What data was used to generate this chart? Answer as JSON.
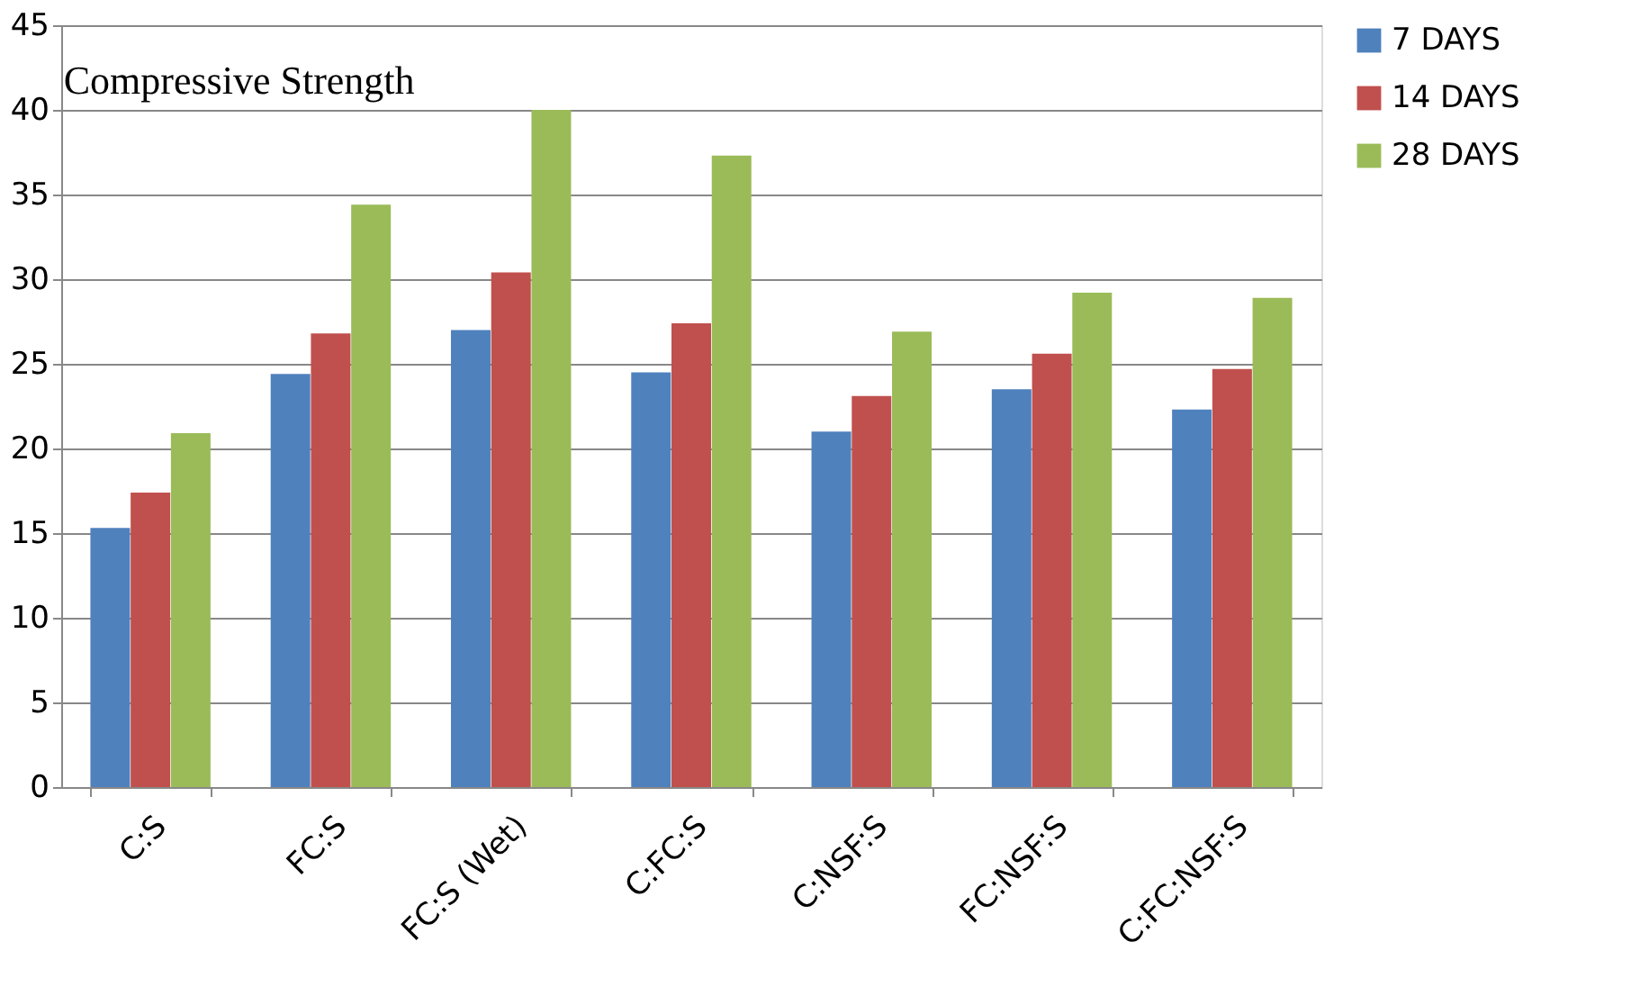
{
  "chart_data": {
    "type": "bar",
    "title": "Compressive Strength",
    "categories": [
      "C:S",
      "FC:S",
      "FC:S (Wet)",
      "C:FC:S",
      "C:NSF:S",
      "FC:NSF:S",
      "C:FC:NSF:S"
    ],
    "series": [
      {
        "name": "7 DAYS",
        "color": "#4f81bd",
        "values": [
          15.3,
          24.4,
          27.0,
          24.5,
          21.0,
          23.5,
          22.3
        ]
      },
      {
        "name": "14 DAYS",
        "color": "#c0504d",
        "values": [
          17.4,
          26.8,
          30.4,
          27.4,
          23.1,
          25.6,
          24.7
        ]
      },
      {
        "name": "28 DAYS",
        "color": "#9bbb59",
        "values": [
          20.9,
          34.4,
          40.0,
          37.3,
          26.9,
          29.2,
          28.9
        ]
      }
    ],
    "ylim": [
      0,
      45
    ],
    "yticks": [
      0,
      5,
      10,
      15,
      20,
      25,
      30,
      35,
      40,
      45
    ],
    "grid": "y",
    "legend": "right"
  }
}
